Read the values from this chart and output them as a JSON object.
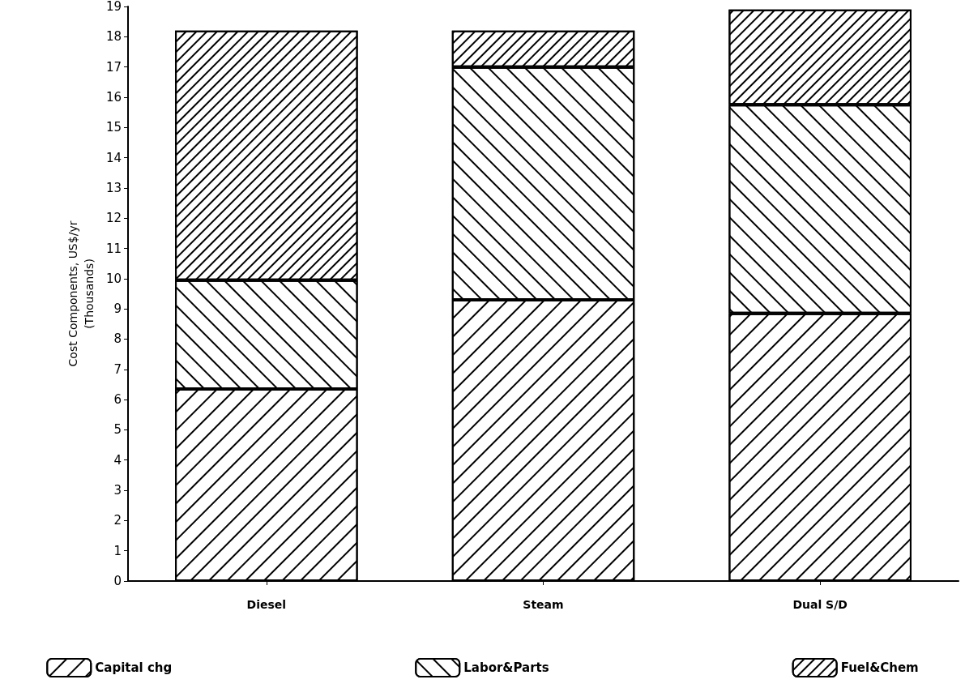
{
  "chart_data": {
    "type": "bar",
    "stacked": true,
    "ylabel": "Cost Components, US$/yr\n(Thousands)",
    "categories": [
      "Diesel",
      "Steam",
      "Dual S/D"
    ],
    "series": [
      {
        "name": "Capital chg",
        "color": "#000000",
        "values": [
          6.35,
          9.3,
          8.85
        ]
      },
      {
        "name": "Labor&Parts",
        "color": "#000000",
        "values": [
          3.6,
          7.7,
          6.9
        ]
      },
      {
        "name": "Fuel&Chem",
        "color": "#000000",
        "values": [
          8.25,
          1.2,
          3.15
        ]
      }
    ],
    "ylim": [
      0,
      19
    ],
    "yticks": [
      0,
      1,
      2,
      3,
      4,
      5,
      6,
      7,
      8,
      9,
      10,
      11,
      12,
      13,
      14,
      15,
      16,
      17,
      18,
      19
    ],
    "grid": false,
    "legend": "bottom"
  }
}
